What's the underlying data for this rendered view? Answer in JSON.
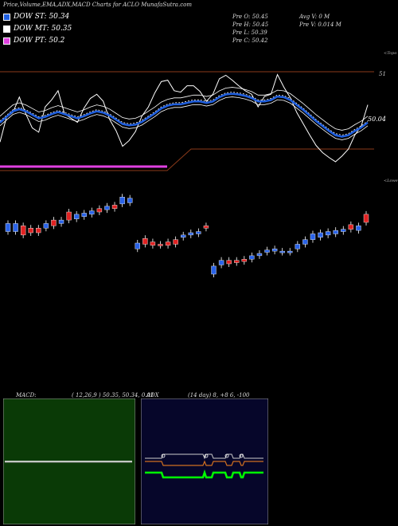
{
  "title": "Price,Volume,EMA,ADX,MACD Charts for ACLO MunafaSutra.com",
  "legend": [
    {
      "label": "DOW ST: 50.34",
      "color": "#1f5fe0"
    },
    {
      "label": "DOW MT: 50.35",
      "color": "#ffffff"
    },
    {
      "label": "DOW PT: 50.2",
      "color": "#e040e0"
    }
  ],
  "info": {
    "open": "Pre   O: 50.45",
    "high": "Pre   H: 50.45",
    "low": "Pre   L: 50.39",
    "close": "Pre   C: 50.42",
    "avg_volume": "Avg V: 0  M",
    "volume": "Pre   V: 0.014  M"
  },
  "labels": {
    "top_band": "<Topo",
    "lower_band": "<Lowe",
    "level_51": "51",
    "price_last": "50.04"
  },
  "macd_label": "MACD:",
  "macd_params": "( 12,26,9 ) 50.35,  50.34,  0.01",
  "adx_label": "ADX",
  "adx_params": "(14  day) 8, +8          6,  -100",
  "colors": {
    "background": "#000000",
    "ema_short": "#1f5fe0",
    "ema_mid": "#ffffff",
    "band_brown": "#8b3a1a",
    "band_magenta": "#e040e0",
    "candle_up": "#2a63e8",
    "candle_down": "#e02222",
    "macd_panel": "#0a3a06",
    "adx_panel": "#06062a",
    "adx_green": "#00ff00",
    "adx_orange": "#d07020"
  },
  "chart_data": [
    {
      "type": "line",
      "name": "price-ema",
      "series": [
        {
          "name": "DOW ST",
          "values": [
            70,
            105,
            112,
            134,
            110,
            90,
            84,
            120,
            130,
            143,
            110,
            104,
            98,
            118,
            132,
            138,
            128,
            102,
            86,
            64,
            72,
            85,
            107,
            120,
            140,
            156,
            158,
            143,
            141,
            150,
            150,
            142,
            128,
            138,
            160,
            165,
            158,
            150,
            143,
            138,
            120,
            135,
            138,
            166,
            148,
            133,
            112,
            96,
            80,
            65,
            55,
            48,
            42,
            50,
            60,
            80,
            93,
            123
          ]
        },
        {
          "name": "DOW MT",
          "values": [
            100,
            108,
            116,
            119,
            116,
            111,
            106,
            108,
            112,
            115,
            112,
            109,
            106,
            109,
            113,
            116,
            114,
            110,
            104,
            98,
            96,
            97,
            101,
            107,
            113,
            120,
            124,
            126,
            126,
            128,
            130,
            130,
            128,
            130,
            136,
            140,
            141,
            140,
            138,
            135,
            130,
            130,
            132,
            137,
            136,
            132,
            125,
            118,
            110,
            102,
            95,
            88,
            82,
            80,
            82,
            88,
            93,
            100
          ]
        },
        {
          "name": "DOW PT",
          "values": [
            35,
            35,
            35,
            35,
            35,
            35,
            35,
            35,
            35,
            35,
            35,
            35,
            35,
            35,
            35,
            35,
            35,
            35,
            35,
            35,
            35,
            35,
            35,
            35,
            35,
            35,
            35,
            35,
            35,
            35,
            35,
            35,
            35,
            35,
            35,
            35,
            35,
            35,
            35,
            35,
            35,
            35,
            35,
            35,
            35,
            35,
            35,
            35,
            35,
            35,
            35,
            35,
            35,
            35,
            35,
            35,
            35,
            35
          ]
        }
      ]
    },
    {
      "type": "bar",
      "name": "candles",
      "candles": [
        {
          "dir": "up",
          "open": 55,
          "close": 62
        },
        {
          "dir": "up",
          "open": 55,
          "close": 62
        },
        {
          "dir": "down",
          "open": 60,
          "close": 52
        },
        {
          "dir": "down",
          "open": 58,
          "close": 54
        },
        {
          "dir": "down",
          "open": 58,
          "close": 54
        },
        {
          "dir": "up",
          "open": 58,
          "close": 62
        },
        {
          "dir": "down",
          "open": 65,
          "close": 60
        },
        {
          "dir": "up",
          "open": 62,
          "close": 65
        },
        {
          "dir": "down",
          "open": 72,
          "close": 65
        },
        {
          "dir": "up",
          "open": 66,
          "close": 70
        },
        {
          "dir": "up",
          "open": 68,
          "close": 71
        },
        {
          "dir": "up",
          "open": 70,
          "close": 73
        },
        {
          "dir": "down",
          "open": 75,
          "close": 72
        },
        {
          "dir": "up",
          "open": 74,
          "close": 77
        },
        {
          "dir": "down",
          "open": 78,
          "close": 75
        },
        {
          "dir": "up",
          "open": 79,
          "close": 85
        },
        {
          "dir": "up",
          "open": 80,
          "close": 84
        },
        {
          "dir": "up",
          "open": 40,
          "close": 45
        },
        {
          "dir": "down",
          "open": 49,
          "close": 44
        },
        {
          "dir": "down",
          "open": 46,
          "close": 43
        },
        {
          "dir": "down",
          "open": 44,
          "close": 43
        },
        {
          "dir": "down",
          "open": 46,
          "close": 43
        },
        {
          "dir": "down",
          "open": 48,
          "close": 44
        },
        {
          "dir": "up",
          "open": 50,
          "close": 52
        },
        {
          "dir": "up",
          "open": 52,
          "close": 54
        },
        {
          "dir": "up",
          "open": 53,
          "close": 55
        },
        {
          "dir": "down",
          "open": 60,
          "close": 58
        },
        {
          "dir": "up",
          "open": 18,
          "close": 25
        },
        {
          "dir": "up",
          "open": 26,
          "close": 30
        },
        {
          "dir": "down",
          "open": 30,
          "close": 27
        },
        {
          "dir": "down",
          "open": 30,
          "close": 28
        },
        {
          "dir": "down",
          "open": 31,
          "close": 29
        },
        {
          "dir": "up",
          "open": 31,
          "close": 34
        },
        {
          "dir": "up",
          "open": 34,
          "close": 36
        },
        {
          "dir": "up",
          "open": 37,
          "close": 39
        },
        {
          "dir": "up",
          "open": 38,
          "close": 40
        },
        {
          "dir": "up",
          "open": 37,
          "close": 38
        },
        {
          "dir": "up",
          "open": 37,
          "close": 38
        },
        {
          "dir": "up",
          "open": 40,
          "close": 44
        },
        {
          "dir": "up",
          "open": 44,
          "close": 48
        },
        {
          "dir": "up",
          "open": 48,
          "close": 53
        },
        {
          "dir": "up",
          "open": 50,
          "close": 54
        },
        {
          "dir": "up",
          "open": 52,
          "close": 55
        },
        {
          "dir": "up",
          "open": 53,
          "close": 56
        },
        {
          "dir": "up",
          "open": 55,
          "close": 57
        },
        {
          "dir": "down",
          "open": 61,
          "close": 57
        },
        {
          "dir": "up",
          "open": 56,
          "close": 60
        },
        {
          "dir": "down",
          "open": 70,
          "close": 63
        }
      ]
    },
    {
      "type": "line",
      "name": "macd",
      "series": [
        {
          "name": "MACD",
          "values": [
            0,
            0,
            0,
            0,
            0,
            0,
            0,
            0,
            0,
            0
          ]
        },
        {
          "name": "Signal",
          "values": [
            0,
            0,
            0,
            0,
            0,
            0,
            0,
            0,
            0,
            0
          ]
        }
      ]
    },
    {
      "type": "line",
      "name": "adx",
      "series": [
        {
          "name": "+DI",
          "values": [
            5,
            5,
            5,
            5,
            5,
            5,
            5,
            5
          ]
        },
        {
          "name": "-DI",
          "values": [
            5,
            5,
            5,
            5,
            5,
            5,
            5,
            5
          ]
        },
        {
          "name": "ADX",
          "values": [
            5,
            5,
            5,
            5,
            5,
            5,
            5,
            5
          ]
        }
      ]
    }
  ]
}
